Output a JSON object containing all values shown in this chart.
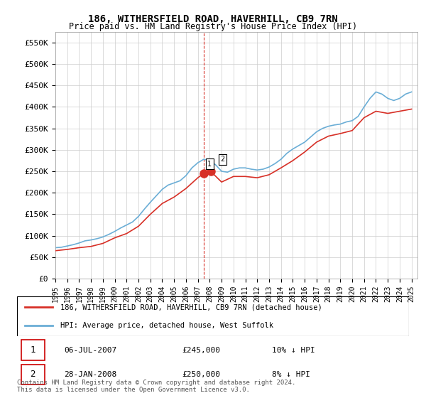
{
  "title": "186, WITHERSFIELD ROAD, HAVERHILL, CB9 7RN",
  "subtitle": "Price paid vs. HM Land Registry's House Price Index (HPI)",
  "ylabel": "",
  "ylim": [
    0,
    575000
  ],
  "yticks": [
    0,
    50000,
    100000,
    150000,
    200000,
    250000,
    300000,
    350000,
    400000,
    450000,
    500000,
    550000
  ],
  "ytick_labels": [
    "£0",
    "£50K",
    "£100K",
    "£150K",
    "£200K",
    "£250K",
    "£300K",
    "£350K",
    "£400K",
    "£450K",
    "£500K",
    "£550K"
  ],
  "xlim_start": 1995.0,
  "xlim_end": 2025.5,
  "hpi_color": "#6baed6",
  "price_color": "#d73027",
  "dashed_line_color": "#d73027",
  "sale1_x": 2007.5,
  "sale1_y": 245000,
  "sale1_label": "1",
  "sale1_date": "06-JUL-2007",
  "sale1_price": "£245,000",
  "sale1_hpi_diff": "10% ↓ HPI",
  "sale2_x": 2008.08,
  "sale2_y": 250000,
  "sale2_label": "2",
  "sale2_date": "28-JAN-2008",
  "sale2_price": "£250,000",
  "sale2_hpi_diff": "8% ↓ HPI",
  "legend_line1": "186, WITHERSFIELD ROAD, HAVERHILL, CB9 7RN (detached house)",
  "legend_line2": "HPI: Average price, detached house, West Suffolk",
  "footer": "Contains HM Land Registry data © Crown copyright and database right 2024.\nThis data is licensed under the Open Government Licence v3.0.",
  "background_color": "#ffffff",
  "grid_color": "#cccccc"
}
